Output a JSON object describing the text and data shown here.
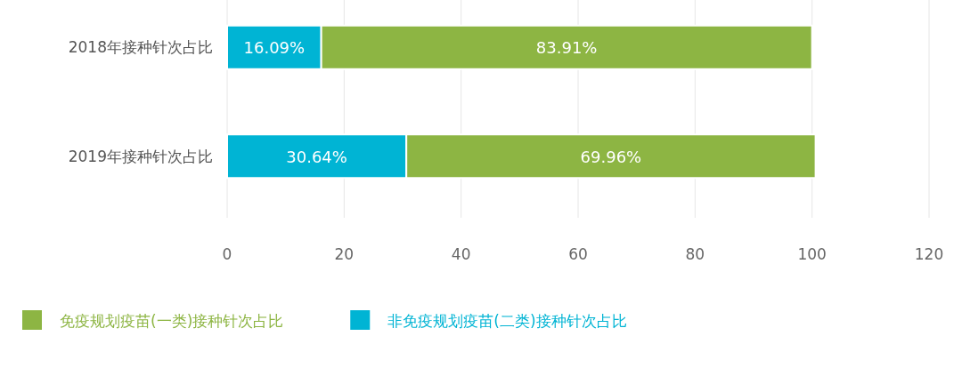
{
  "chart_data": {
    "type": "bar",
    "orientation": "horizontal",
    "stacked": true,
    "categories": [
      "2018年接种针次占比",
      "2019年接种针次占比"
    ],
    "series": [
      {
        "name": "非免疫规划疫苗(二类)接种针次占比",
        "color": "#00b4d4",
        "values": [
          16.09,
          30.64
        ],
        "value_labels": [
          "16.09%",
          "30.64%"
        ]
      },
      {
        "name": "免疫规划疫苗(一类)接种针次占比",
        "color": "#8db543",
        "values": [
          83.91,
          69.96
        ],
        "value_labels": [
          "83.91%",
          "69.96%"
        ]
      }
    ],
    "xlim": [
      0,
      120
    ],
    "xticks": [
      0,
      20,
      40,
      60,
      80,
      100,
      120
    ],
    "grid": "x",
    "legend": "bottom"
  }
}
